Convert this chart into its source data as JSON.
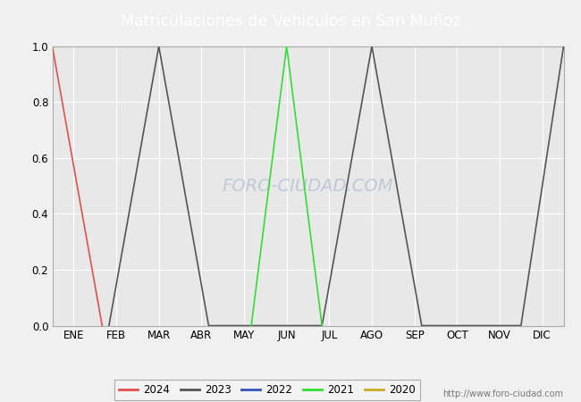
{
  "title": "Matriculaciones de Vehiculos en San Muñoz",
  "title_bgcolor": "#4d8fcc",
  "title_fgcolor": "#ffffff",
  "months": [
    "ENE",
    "FEB",
    "MAR",
    "ABR",
    "MAY",
    "JUN",
    "JUL",
    "AGO",
    "SEP",
    "OCT",
    "NOV",
    "DIC"
  ],
  "month_positions": [
    1,
    2,
    3,
    4,
    5,
    6,
    7,
    8,
    9,
    10,
    11,
    12
  ],
  "series": [
    {
      "label": "2024",
      "color": "#e05050",
      "data_x": [
        0.5,
        1.67
      ],
      "data_y": [
        1.0,
        0.0
      ]
    },
    {
      "label": "2023",
      "color": "#555555",
      "data_x": [
        1.83,
        3,
        4.17,
        6.83,
        8,
        9.17,
        11.5,
        12.5
      ],
      "data_y": [
        0.0,
        1.0,
        0.0,
        0.0,
        1.0,
        0.0,
        0.0,
        1.0
      ]
    },
    {
      "label": "2022",
      "color": "#3355bb",
      "data_x": [],
      "data_y": []
    },
    {
      "label": "2021",
      "color": "#33dd33",
      "data_x": [
        5.17,
        6,
        6.83
      ],
      "data_y": [
        0.0,
        1.0,
        0.0
      ]
    },
    {
      "label": "2020",
      "color": "#ccaa22",
      "data_x": [],
      "data_y": []
    }
  ],
  "ylim": [
    0.0,
    1.0
  ],
  "xlim": [
    0.5,
    12.5
  ],
  "yticks": [
    0.0,
    0.2,
    0.4,
    0.6,
    0.8,
    1.0
  ],
  "fig_bg_color": "#f0f0f0",
  "plot_bg_color": "#e8e8e8",
  "watermark_text": "FORO-CIUDAD.COM",
  "watermark_color": "#c0c8d8",
  "watermark_url": "http://www.foro-ciudad.com",
  "grid_color": "#ffffff",
  "linewidth": 1.2
}
